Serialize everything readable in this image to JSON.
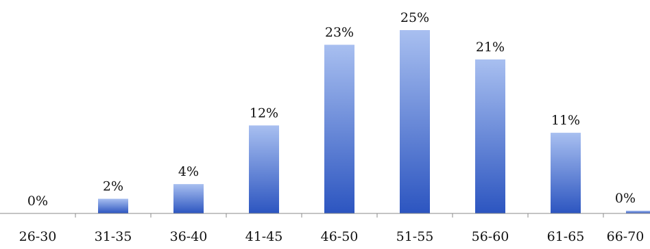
{
  "chart_data": {
    "type": "bar",
    "title": "",
    "xlabel": "",
    "ylabel": "",
    "categories": [
      "26-30",
      "31-35",
      "36-40",
      "41-45",
      "46-50",
      "51-55",
      "56-60",
      "61-65",
      "66-70"
    ],
    "values": [
      0,
      2,
      4,
      12,
      23,
      25,
      21,
      11,
      0
    ],
    "value_labels": [
      "0%",
      "2%",
      "4%",
      "12%",
      "23%",
      "25%",
      "21%",
      "11%",
      "0%"
    ],
    "ylim": [
      0,
      25
    ],
    "grid": false,
    "legend": "none",
    "colors": {
      "bar_top": "#a8bff0",
      "bar_bottom": "#2c55c0",
      "axis": "#8a8a8a",
      "text": "#111111"
    }
  }
}
